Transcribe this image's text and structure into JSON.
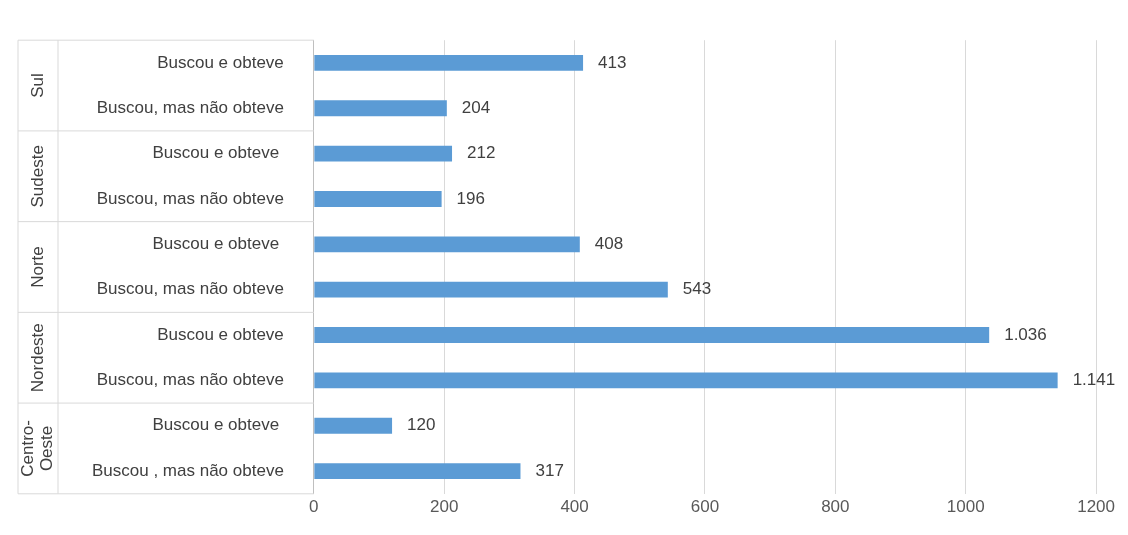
{
  "chart_data": {
    "type": "bar",
    "orientation": "horizontal",
    "categories": [
      "Buscou e obteve",
      "Buscou, mas não obteve",
      "Buscou e obteve ",
      "Buscou, mas não obteve",
      "Buscou e obteve ",
      "Buscou, mas não obteve",
      "Buscou e obteve",
      "Buscou, mas não obteve",
      "Buscou e obteve ",
      "Buscou , mas não obteve"
    ],
    "values": [
      413,
      204,
      212,
      196,
      408,
      543,
      1036,
      1141,
      120,
      317
    ],
    "value_labels": [
      "413",
      "204",
      "212",
      "196",
      "408",
      "543",
      "1.036",
      "1.141",
      "120",
      "317"
    ],
    "color": "#5b9bd5",
    "xlim": [
      0,
      1200
    ],
    "xticks": [
      0,
      200,
      400,
      600,
      800,
      1000,
      1200
    ],
    "grid": "x",
    "legend": false,
    "annotations": [
      "Sul",
      "Sudeste",
      "Norte",
      "Nordeste",
      "Centro-Oeste"
    ]
  }
}
